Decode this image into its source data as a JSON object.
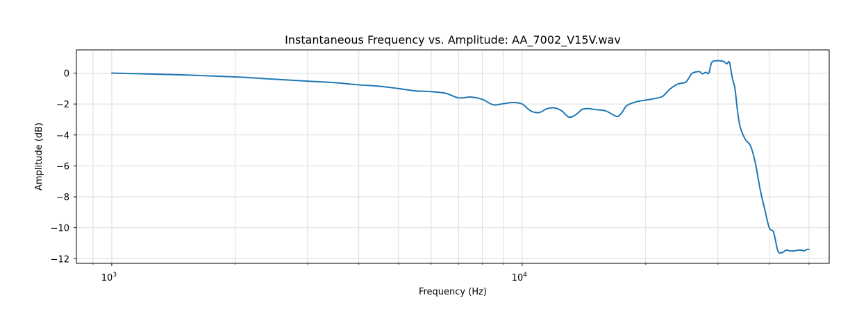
{
  "chart_data": {
    "type": "line",
    "title": "Instantaneous Frequency vs. Amplitude: AA_7002_V15V.wav",
    "xlabel": "Frequency (Hz)",
    "ylabel": "Amplitude (dB)",
    "xscale": "log",
    "xlim": [
      820,
      56000
    ],
    "ylim": [
      -12.3,
      1.5
    ],
    "grid": true,
    "line_color": "#1f77b4",
    "x_tick_labels": [
      {
        "value": 1000,
        "base": "10",
        "exp": "3"
      },
      {
        "value": 10000,
        "base": "10",
        "exp": "4"
      }
    ],
    "x_minor_ticks": [
      900,
      2000,
      3000,
      4000,
      5000,
      6000,
      7000,
      8000,
      9000,
      20000,
      30000,
      40000,
      50000
    ],
    "y_ticks": [
      0,
      -2,
      -4,
      -6,
      -8,
      -10,
      -12
    ],
    "y_tick_labels": [
      "0",
      "−2",
      "−4",
      "−6",
      "−8",
      "−10",
      "−12"
    ],
    "series": [
      {
        "x": [
          1000,
          1200,
          1500,
          2000,
          2500,
          3000,
          3500,
          4000,
          4500,
          5000,
          5500,
          6000,
          6500,
          7000,
          7500,
          8000,
          8500,
          9000,
          9500,
          10000,
          10500,
          11000,
          11500,
          12000,
          12500,
          13000,
          13500,
          14000,
          14500,
          15000,
          16000,
          17000,
          17500,
          18000,
          19000,
          20000,
          21000,
          22000,
          23000,
          24000,
          25000,
          25500,
          26000,
          27000,
          27500,
          28000,
          28500,
          29000,
          30000,
          31000,
          31500,
          32000,
          32500,
          33000,
          33500,
          34000,
          35000,
          36000,
          37000,
          38000,
          39000,
          40000,
          41000,
          42000,
          43000,
          44000,
          45000,
          46000,
          47000,
          48000,
          48500,
          49000,
          49500,
          50000
        ],
        "y": [
          0.0,
          -0.05,
          -0.12,
          -0.25,
          -0.4,
          -0.52,
          -0.62,
          -0.76,
          -0.85,
          -1.0,
          -1.15,
          -1.2,
          -1.3,
          -1.6,
          -1.55,
          -1.7,
          -2.05,
          -1.98,
          -1.9,
          -2.0,
          -2.45,
          -2.55,
          -2.3,
          -2.25,
          -2.45,
          -2.85,
          -2.7,
          -2.35,
          -2.3,
          -2.35,
          -2.45,
          -2.8,
          -2.55,
          -2.1,
          -1.85,
          -1.75,
          -1.65,
          -1.5,
          -1.0,
          -0.7,
          -0.6,
          -0.3,
          0.0,
          0.1,
          -0.05,
          0.05,
          0.0,
          0.7,
          0.8,
          0.75,
          0.6,
          0.7,
          -0.3,
          -1.0,
          -2.5,
          -3.5,
          -4.3,
          -4.7,
          -5.8,
          -7.5,
          -8.8,
          -10.0,
          -10.3,
          -11.5,
          -11.6,
          -11.45,
          -11.5,
          -11.5,
          -11.45,
          -11.45,
          -11.5,
          -11.45,
          -11.4,
          -11.4
        ]
      }
    ]
  }
}
